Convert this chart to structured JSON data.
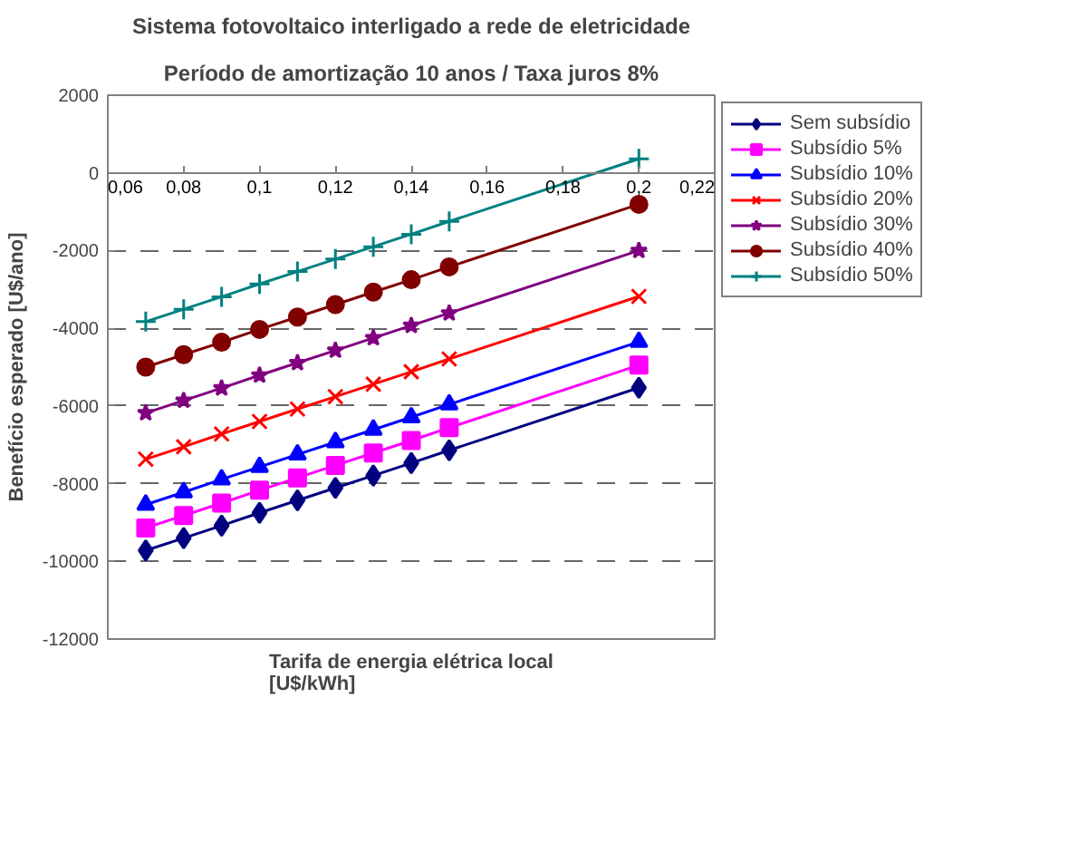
{
  "chart_data": {
    "type": "line",
    "title": "Sistema fotovoltaico interligado a rede de eletricidade",
    "subtitle": "Período de amortização 10 anos / Taxa juros 8%",
    "xlabel": "Tarifa de energia elétrica local\n[U$/kWh]",
    "ylabel": "Benefício esperado [U$/ano]",
    "x": [
      0.07,
      0.08,
      0.09,
      0.1,
      0.11,
      0.12,
      0.13,
      0.14,
      0.15,
      0.2
    ],
    "xlim": [
      0.06,
      0.22
    ],
    "xticks": [
      {
        "value": 0.06,
        "label": "0,06"
      },
      {
        "value": 0.08,
        "label": "0,08"
      },
      {
        "value": 0.1,
        "label": "0,1"
      },
      {
        "value": 0.12,
        "label": "0,12"
      },
      {
        "value": 0.14,
        "label": "0,14"
      },
      {
        "value": 0.16,
        "label": "0,16"
      },
      {
        "value": 0.18,
        "label": "0,18"
      },
      {
        "value": 0.2,
        "label": "0,2"
      },
      {
        "value": 0.22,
        "label": "0,22"
      }
    ],
    "ylim": [
      -12000,
      2000
    ],
    "yticks": [
      -12000,
      -10000,
      -8000,
      -6000,
      -4000,
      -2000,
      0,
      2000
    ],
    "grid": "y",
    "legend": "right",
    "line_style": "solid",
    "series": [
      {
        "name": "Sem subsídio",
        "color": "#000080",
        "marker": "diamond",
        "values": [
          -9720,
          -9400,
          -9080,
          -8750,
          -8430,
          -8110,
          -7790,
          -7470,
          -7140,
          -5530
        ]
      },
      {
        "name": "Subsídio 5%",
        "color": "#ff00ff",
        "marker": "square",
        "values": [
          -9140,
          -8820,
          -8500,
          -8170,
          -7850,
          -7530,
          -7210,
          -6890,
          -6560,
          -4950
        ]
      },
      {
        "name": "Subsídio 10%",
        "color": "#0000ff",
        "marker": "triangle",
        "values": [
          -8540,
          -8220,
          -7890,
          -7570,
          -7250,
          -6930,
          -6610,
          -6290,
          -5960,
          -4350
        ]
      },
      {
        "name": "Subsídio 20%",
        "color": "#ff0000",
        "marker": "x",
        "values": [
          -7370,
          -7050,
          -6720,
          -6400,
          -6080,
          -5760,
          -5440,
          -5120,
          -4790,
          -3180
        ]
      },
      {
        "name": "Subsídio 30%",
        "color": "#800080",
        "marker": "star",
        "values": [
          -6180,
          -5860,
          -5540,
          -5210,
          -4890,
          -4570,
          -4250,
          -3930,
          -3610,
          -2000
        ]
      },
      {
        "name": "Subsídio 40%",
        "color": "#800000",
        "marker": "circle",
        "values": [
          -5000,
          -4680,
          -4360,
          -4030,
          -3710,
          -3390,
          -3070,
          -2750,
          -2420,
          -810
        ]
      },
      {
        "name": "Subsídio 50%",
        "color": "#008080",
        "marker": "cross",
        "values": [
          -3830,
          -3510,
          -3190,
          -2860,
          -2540,
          -2220,
          -1900,
          -1580,
          -1250,
          360
        ]
      }
    ]
  }
}
